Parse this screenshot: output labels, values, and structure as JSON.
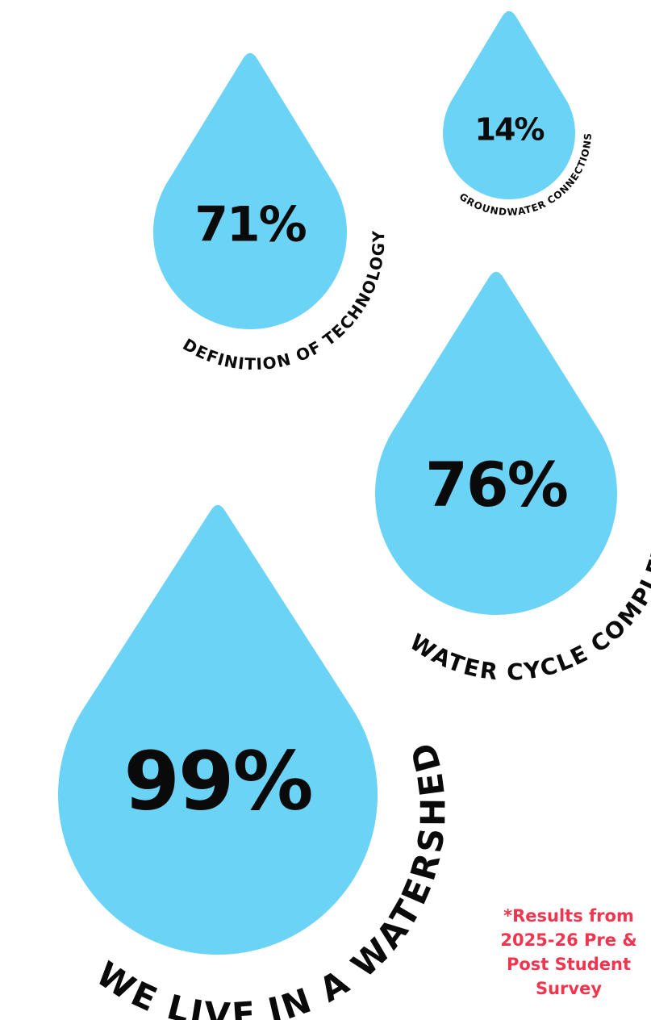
{
  "chart_data": {
    "type": "bar",
    "categories": [
      "DEFINITION OF TECHNOLOGY",
      "GROUNDWATER CONNECTIONS",
      "WATER CYCLE COMPLEXITY",
      "WE LIVE IN A WATERSHED"
    ],
    "values": [
      71,
      14,
      76,
      99
    ],
    "value_labels": [
      "71%",
      "14%",
      "76%",
      "99%"
    ],
    "unit": "%"
  },
  "colors": {
    "drop_fill": "#6BD3F5",
    "text": "#0a0a0a",
    "footnote": "#F2354F"
  },
  "footnote": {
    "line1": "*Results from",
    "line2": "2025-26 Pre &",
    "line3": "Post Student",
    "line4": "Survey"
  }
}
